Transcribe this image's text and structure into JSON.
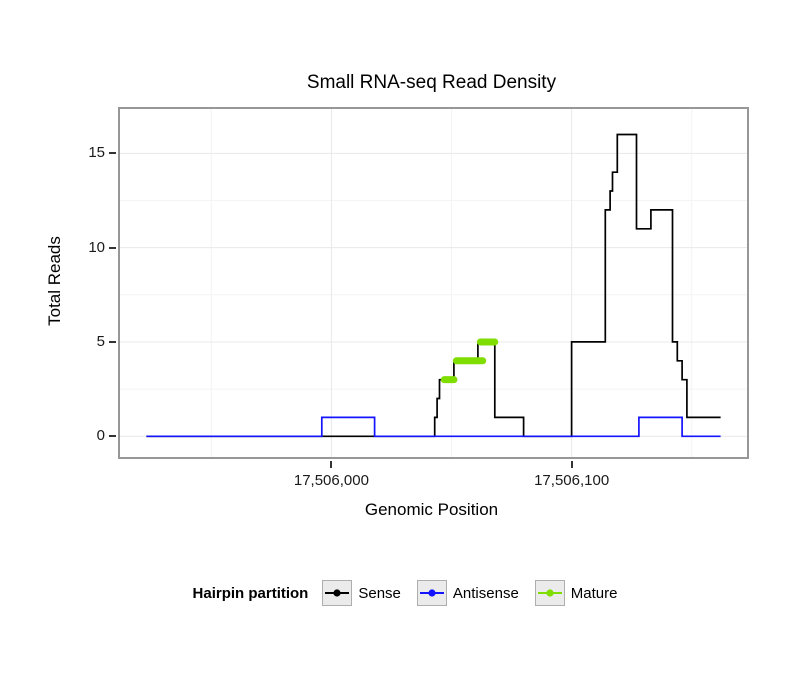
{
  "chart_data": {
    "type": "line",
    "title": "Small RNA-seq Read Density",
    "xlabel": "Genomic Position",
    "ylabel": "Total Reads",
    "xlim": [
      17505912,
      17506173
    ],
    "ylim": [
      -1.1,
      17.35
    ],
    "xticks": [
      17506000,
      17506100
    ],
    "xtick_labels": [
      "17,506,000",
      "17,506,100"
    ],
    "yticks": [
      0,
      5,
      10,
      15
    ],
    "ytick_labels": [
      "0",
      "5",
      "10",
      "15"
    ],
    "x_minor_ticks": [
      17505950,
      17506050,
      17506150
    ],
    "y_minor_ticks": [
      2.5,
      7.5,
      12.5
    ],
    "grid": true,
    "grid_major_color": "#e8e8e8",
    "grid_minor_color": "#f4f4f4",
    "panel_border_color": "#979797",
    "legend_position": "bottom",
    "legend_title": "Hairpin partition",
    "series": [
      {
        "name": "Sense",
        "color": "#000000",
        "style": "step-line",
        "line_width": 1.7,
        "points": [
          [
            17505923,
            0
          ],
          [
            17506043,
            0
          ],
          [
            17506043,
            1
          ],
          [
            17506044,
            1
          ],
          [
            17506044,
            2
          ],
          [
            17506045,
            2
          ],
          [
            17506045,
            3
          ],
          [
            17506051,
            3
          ],
          [
            17506051,
            4
          ],
          [
            17506061,
            4
          ],
          [
            17506061,
            5
          ],
          [
            17506068,
            5
          ],
          [
            17506068,
            1
          ],
          [
            17506080,
            1
          ],
          [
            17506080,
            0
          ],
          [
            17506100,
            0
          ],
          [
            17506100,
            5
          ],
          [
            17506114,
            5
          ],
          [
            17506114,
            12
          ],
          [
            17506116,
            12
          ],
          [
            17506116,
            13
          ],
          [
            17506117,
            13
          ],
          [
            17506117,
            14
          ],
          [
            17506119,
            14
          ],
          [
            17506119,
            16
          ],
          [
            17506127,
            16
          ],
          [
            17506127,
            11
          ],
          [
            17506133,
            11
          ],
          [
            17506133,
            12
          ],
          [
            17506142,
            12
          ],
          [
            17506142,
            5
          ],
          [
            17506144,
            5
          ],
          [
            17506144,
            4
          ],
          [
            17506146,
            4
          ],
          [
            17506146,
            3
          ],
          [
            17506148,
            3
          ],
          [
            17506148,
            1
          ],
          [
            17506162,
            1
          ]
        ]
      },
      {
        "name": "Antisense",
        "color": "#1414ff",
        "style": "step-line",
        "line_width": 1.7,
        "points": [
          [
            17505923,
            0
          ],
          [
            17505996,
            0
          ],
          [
            17505996,
            1
          ],
          [
            17506018,
            1
          ],
          [
            17506018,
            0
          ],
          [
            17506128,
            0
          ],
          [
            17506128,
            1
          ],
          [
            17506146,
            1
          ],
          [
            17506146,
            0
          ],
          [
            17506162,
            0
          ]
        ]
      },
      {
        "name": "Mature",
        "color": "#7fdd00",
        "style": "thick-segments",
        "line_width": 7,
        "segments": [
          [
            17506047,
            17506051,
            3
          ],
          [
            17506052,
            17506063,
            4
          ],
          [
            17506062,
            17506068,
            5
          ]
        ]
      }
    ]
  }
}
